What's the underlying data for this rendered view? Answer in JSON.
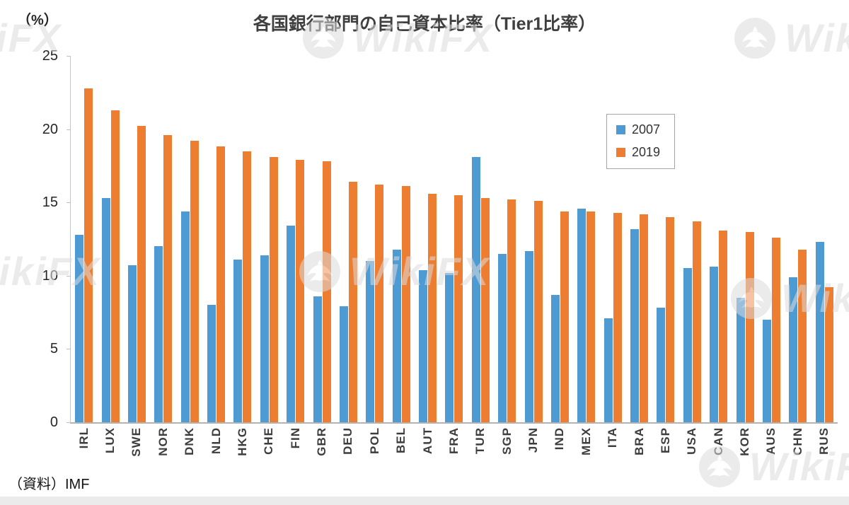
{
  "watermark": {
    "text": "WikiFX"
  },
  "chart_data": {
    "type": "bar",
    "title": "各国銀行部門の自己資本比率（Tier1比率）",
    "ylabel": "（%）",
    "xlabel": "",
    "source": "（資料）IMF",
    "grid": false,
    "legend_position": "right-upper",
    "ylim": [
      0,
      25
    ],
    "yticks": [
      0,
      5,
      10,
      15,
      20,
      25
    ],
    "categories": [
      "IRL",
      "LUX",
      "SWE",
      "NOR",
      "DNK",
      "NLD",
      "HKG",
      "CHE",
      "FIN",
      "GBR",
      "DEU",
      "POL",
      "BEL",
      "AUT",
      "FRA",
      "TUR",
      "SGP",
      "JPN",
      "IND",
      "MEX",
      "ITA",
      "BRA",
      "ESP",
      "USA",
      "CAN",
      "KOR",
      "AUS",
      "CHN",
      "RUS"
    ],
    "series": [
      {
        "name": "2007",
        "color": "#4e9bd4",
        "values": [
          12.8,
          15.3,
          10.7,
          12.0,
          14.4,
          8.0,
          11.1,
          11.4,
          13.4,
          8.6,
          7.9,
          11.0,
          11.8,
          10.4,
          10.2,
          18.1,
          11.5,
          11.7,
          8.7,
          14.6,
          7.1,
          13.2,
          7.8,
          10.5,
          10.6,
          8.5,
          7.0,
          9.9,
          12.3
        ]
      },
      {
        "name": "2019",
        "color": "#ed7d31",
        "values": [
          22.8,
          21.3,
          20.2,
          19.6,
          19.2,
          18.8,
          18.5,
          18.1,
          17.9,
          17.8,
          16.4,
          16.2,
          16.1,
          15.6,
          15.5,
          15.3,
          15.2,
          15.1,
          14.4,
          14.4,
          14.3,
          14.2,
          14.0,
          13.7,
          13.1,
          13.0,
          12.6,
          11.8,
          9.2
        ]
      }
    ]
  }
}
